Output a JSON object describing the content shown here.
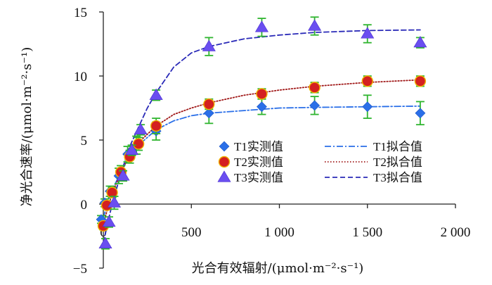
{
  "chart_data": {
    "type": "scatter",
    "xlabel": "光合有效辐射/(μmol·m⁻²·s⁻¹)",
    "ylabel": "净光合速率/(μmol·m⁻²·s⁻¹)",
    "xlim": [
      0,
      2000
    ],
    "ylim": [
      -5,
      15
    ],
    "x_ticks": [
      0,
      500,
      1000,
      1500,
      2000
    ],
    "x_tick_labels": [
      "0",
      "500",
      "1 000",
      "1 500",
      "2 000"
    ],
    "y_ticks": [
      -5,
      0,
      5,
      10,
      15
    ],
    "y_tick_labels": [
      "−5",
      "0",
      "5",
      "10",
      "15"
    ],
    "legend_position": "lower-right",
    "x": [
      0,
      20,
      50,
      100,
      150,
      200,
      300,
      600,
      900,
      1200,
      1500,
      1800
    ],
    "series": [
      {
        "name": "T1实测值",
        "marker": "diamond",
        "color": "#2a6fe8",
        "values": [
          -1.2,
          0.1,
          1.0,
          2.2,
          3.9,
          4.6,
          5.7,
          7.1,
          7.6,
          7.7,
          7.6,
          7.1
        ],
        "errors": [
          0.3,
          0.3,
          0.4,
          0.6,
          0.6,
          0.7,
          0.7,
          0.8,
          0.6,
          0.7,
          0.9,
          0.9
        ]
      },
      {
        "name": "T2实测值",
        "marker": "circle",
        "color": "#d42020",
        "values": [
          -1.7,
          -0.1,
          0.9,
          2.5,
          3.7,
          4.7,
          6.1,
          7.8,
          8.6,
          9.1,
          9.6,
          9.6
        ],
        "errors": [
          0.3,
          0.3,
          0.4,
          0.5,
          0.5,
          0.5,
          0.6,
          0.4,
          0.4,
          0.4,
          0.4,
          0.4
        ]
      },
      {
        "name": "T3实测值",
        "marker": "triangle",
        "color": "#6a4ef0",
        "values": [
          -3.1,
          -1.4,
          0.1,
          2.2,
          4.2,
          5.8,
          8.5,
          12.3,
          13.8,
          13.9,
          13.3,
          12.6
        ],
        "errors": [
          0.4,
          0.4,
          0.5,
          0.4,
          0.4,
          0.4,
          0.4,
          0.7,
          0.7,
          0.7,
          0.7,
          0.4
        ]
      }
    ],
    "fit_series": [
      {
        "name": "T1拟合值",
        "style": "dash-dot",
        "color": "#2a6fe8",
        "x": [
          0,
          25,
          50,
          100,
          150,
          200,
          300,
          400,
          500,
          600,
          800,
          1000,
          1200,
          1500,
          1800
        ],
        "values": [
          -1.1,
          0.2,
          1.1,
          2.5,
          3.7,
          4.6,
          5.8,
          6.5,
          6.9,
          7.1,
          7.3,
          7.5,
          7.55,
          7.6,
          7.65
        ]
      },
      {
        "name": "T2拟合值",
        "style": "dotted",
        "color": "#a01818",
        "x": [
          0,
          25,
          50,
          100,
          150,
          200,
          300,
          400,
          500,
          600,
          800,
          1000,
          1200,
          1500,
          1800
        ],
        "values": [
          -1.6,
          -0.3,
          0.8,
          2.5,
          3.8,
          4.8,
          6.1,
          7.0,
          7.5,
          7.9,
          8.5,
          8.9,
          9.2,
          9.5,
          9.7
        ]
      },
      {
        "name": "T3拟合值",
        "style": "dashed",
        "color": "#2a2ab8",
        "x": [
          0,
          25,
          50,
          100,
          150,
          200,
          250,
          300,
          400,
          500,
          600,
          800,
          1000,
          1200,
          1500,
          1800
        ],
        "values": [
          -3.0,
          -1.5,
          0.0,
          2.4,
          4.5,
          6.0,
          7.5,
          8.7,
          10.7,
          11.8,
          12.3,
          12.9,
          13.2,
          13.4,
          13.55,
          13.6
        ]
      }
    ]
  }
}
